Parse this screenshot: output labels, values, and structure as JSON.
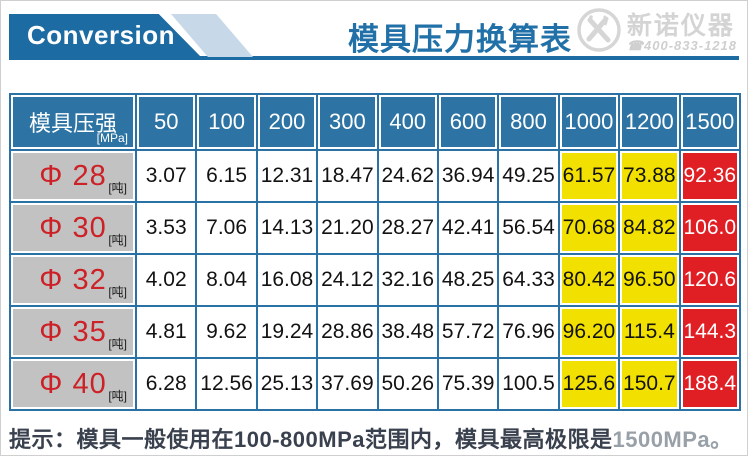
{
  "header": {
    "banner_label": "Conversion",
    "title": "模具压力换算表",
    "logo": {
      "name": "新诺仪器",
      "phone": "400-833-1218",
      "phone_icon": "☎"
    }
  },
  "table": {
    "corner_label": "模具压强",
    "corner_unit": "[MPa]",
    "row_unit": "[吨]",
    "yellow_columns": [
      7,
      8
    ],
    "red_columns": [
      9
    ]
  },
  "chart_data": {
    "type": "table",
    "title": "模具压力换算表",
    "column_unit": "MPa",
    "row_unit": "吨",
    "columns": [
      "50",
      "100",
      "200",
      "300",
      "400",
      "600",
      "800",
      "1000",
      "1200",
      "1500"
    ],
    "rows": [
      {
        "label": "Φ 28",
        "values": [
          "3.07",
          "6.15",
          "12.31",
          "18.47",
          "24.62",
          "36.94",
          "49.25",
          "61.57",
          "73.88",
          "92.36"
        ]
      },
      {
        "label": "Φ 30",
        "values": [
          "3.53",
          "7.06",
          "14.13",
          "21.20",
          "28.27",
          "42.41",
          "56.54",
          "70.68",
          "84.82",
          "106.0"
        ]
      },
      {
        "label": "Φ 32",
        "values": [
          "4.02",
          "8.04",
          "16.08",
          "24.12",
          "32.16",
          "48.25",
          "64.33",
          "80.42",
          "96.50",
          "120.6"
        ]
      },
      {
        "label": "Φ 35",
        "values": [
          "4.81",
          "9.62",
          "19.24",
          "28.86",
          "38.48",
          "57.72",
          "76.96",
          "96.20",
          "115.4",
          "144.3"
        ]
      },
      {
        "label": "Φ 40",
        "values": [
          "6.28",
          "12.56",
          "25.13",
          "37.69",
          "50.26",
          "75.39",
          "100.5",
          "125.6",
          "150.7",
          "188.4"
        ]
      }
    ],
    "legend": {
      "yellow_range": "1000-1200 MPa",
      "red_range": "1500 MPa"
    }
  },
  "footer": {
    "tip_main": "提示：模具一般使用在100-800MPa范围内，模具最高极限是",
    "tip_faded": "1500MPa。"
  },
  "colors": {
    "banner_blue": "#1c6ba3",
    "band_light_blue": "#c7d8e9",
    "title_blue": "#2171a8",
    "header_cell_blue": "#2d74a4",
    "grid_blue": "#2a72a6",
    "label_gray": "#c2c2c2",
    "label_red_text": "#cc2127",
    "highlight_yellow": "#f2e000",
    "highlight_red": "#e01f25",
    "tip_dark": "#3a414e",
    "logo_gray": "#d4d4d4"
  }
}
